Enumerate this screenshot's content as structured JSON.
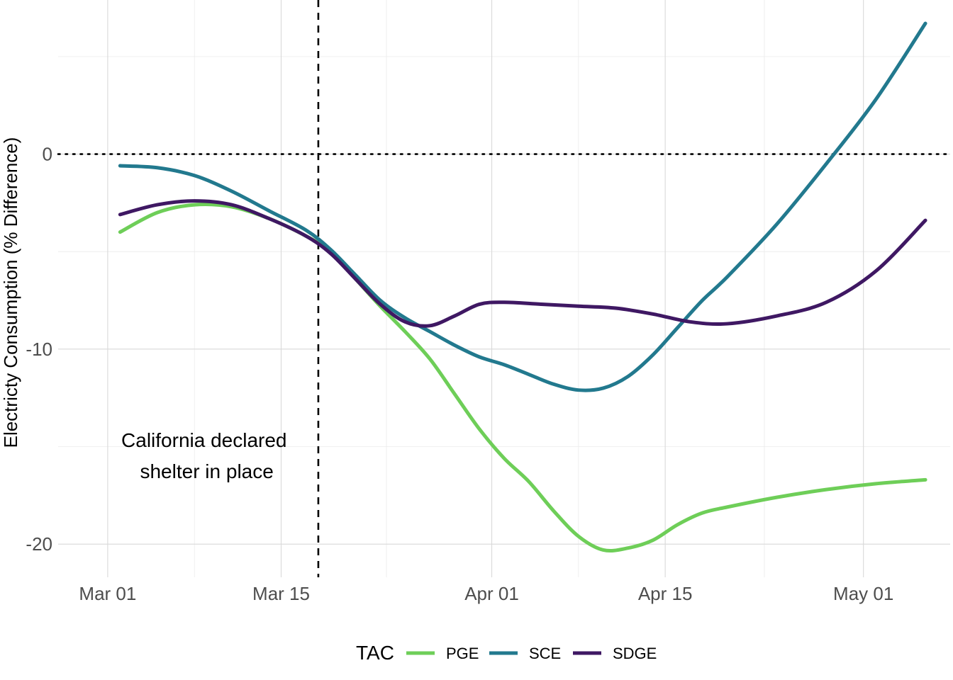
{
  "chart_data": {
    "type": "line",
    "title": "",
    "xlabel": "",
    "ylabel": "Electricty Consumption (% Difference)",
    "x_tick_labels": [
      "Mar 01",
      "Mar 15",
      "Apr 01",
      "Apr 15",
      "May 01"
    ],
    "x_tick_values": [
      "2020-03-01",
      "2020-03-15",
      "2020-04-01",
      "2020-04-15",
      "2020-05-01"
    ],
    "xlim": [
      "2020-02-26",
      "2020-05-08"
    ],
    "y_tick_labels": [
      "0",
      "-10",
      "-20"
    ],
    "y_tick_values": [
      0,
      -10,
      -20
    ],
    "ylim": [
      -21.7,
      7.9
    ],
    "grid": true,
    "legend": {
      "position": "bottom",
      "title": "TAC"
    },
    "reference_lines": [
      {
        "type": "vertical",
        "style": "dashed",
        "x": "2020-03-18"
      },
      {
        "type": "horizontal",
        "style": "dotted",
        "y": 0
      }
    ],
    "annotation": {
      "lines": [
        "California declared",
        "shelter in place"
      ],
      "x": "2020-03-09",
      "y": -15.3
    },
    "series": [
      {
        "name": "PGE",
        "color": "#6ece58",
        "points": [
          [
            "2020-03-02",
            -4.0
          ],
          [
            "2020-03-05",
            -3.0
          ],
          [
            "2020-03-08",
            -2.6
          ],
          [
            "2020-03-11",
            -2.7
          ],
          [
            "2020-03-14",
            -3.3
          ],
          [
            "2020-03-17",
            -4.2
          ],
          [
            "2020-03-19",
            -5.0
          ],
          [
            "2020-03-21",
            -6.4
          ],
          [
            "2020-03-23",
            -7.8
          ],
          [
            "2020-03-25",
            -9.1
          ],
          [
            "2020-03-27",
            -10.5
          ],
          [
            "2020-03-29",
            -12.3
          ],
          [
            "2020-03-31",
            -14.1
          ],
          [
            "2020-04-02",
            -15.6
          ],
          [
            "2020-04-04",
            -16.8
          ],
          [
            "2020-04-06",
            -18.3
          ],
          [
            "2020-04-08",
            -19.6
          ],
          [
            "2020-04-10",
            -20.3
          ],
          [
            "2020-04-12",
            -20.2
          ],
          [
            "2020-04-14",
            -19.8
          ],
          [
            "2020-04-16",
            -19.0
          ],
          [
            "2020-04-18",
            -18.4
          ],
          [
            "2020-04-20",
            -18.1
          ],
          [
            "2020-04-24",
            -17.6
          ],
          [
            "2020-04-28",
            -17.2
          ],
          [
            "2020-05-02",
            -16.9
          ],
          [
            "2020-05-06",
            -16.7
          ]
        ]
      },
      {
        "name": "SCE",
        "color": "#22798e",
        "points": [
          [
            "2020-03-02",
            -0.6
          ],
          [
            "2020-03-05",
            -0.7
          ],
          [
            "2020-03-08",
            -1.1
          ],
          [
            "2020-03-11",
            -1.9
          ],
          [
            "2020-03-14",
            -2.9
          ],
          [
            "2020-03-17",
            -3.9
          ],
          [
            "2020-03-19",
            -4.9
          ],
          [
            "2020-03-21",
            -6.2
          ],
          [
            "2020-03-23",
            -7.5
          ],
          [
            "2020-03-25",
            -8.4
          ],
          [
            "2020-03-27",
            -9.1
          ],
          [
            "2020-03-29",
            -9.8
          ],
          [
            "2020-03-31",
            -10.4
          ],
          [
            "2020-04-02",
            -10.8
          ],
          [
            "2020-04-04",
            -11.3
          ],
          [
            "2020-04-06",
            -11.8
          ],
          [
            "2020-04-08",
            -12.1
          ],
          [
            "2020-04-10",
            -12.0
          ],
          [
            "2020-04-12",
            -11.4
          ],
          [
            "2020-04-14",
            -10.3
          ],
          [
            "2020-04-16",
            -8.9
          ],
          [
            "2020-04-18",
            -7.5
          ],
          [
            "2020-04-20",
            -6.3
          ],
          [
            "2020-04-24",
            -3.6
          ],
          [
            "2020-04-28",
            -0.5
          ],
          [
            "2020-05-02",
            2.8
          ],
          [
            "2020-05-06",
            6.7
          ]
        ]
      },
      {
        "name": "SDGE",
        "color": "#3f1863",
        "points": [
          [
            "2020-03-02",
            -3.1
          ],
          [
            "2020-03-05",
            -2.6
          ],
          [
            "2020-03-08",
            -2.4
          ],
          [
            "2020-03-11",
            -2.6
          ],
          [
            "2020-03-14",
            -3.3
          ],
          [
            "2020-03-17",
            -4.2
          ],
          [
            "2020-03-19",
            -5.1
          ],
          [
            "2020-03-21",
            -6.4
          ],
          [
            "2020-03-23",
            -7.7
          ],
          [
            "2020-03-25",
            -8.6
          ],
          [
            "2020-03-27",
            -8.8
          ],
          [
            "2020-03-29",
            -8.3
          ],
          [
            "2020-03-31",
            -7.7
          ],
          [
            "2020-04-02",
            -7.6
          ],
          [
            "2020-04-05",
            -7.7
          ],
          [
            "2020-04-08",
            -7.8
          ],
          [
            "2020-04-11",
            -7.9
          ],
          [
            "2020-04-14",
            -8.2
          ],
          [
            "2020-04-17",
            -8.6
          ],
          [
            "2020-04-20",
            -8.7
          ],
          [
            "2020-04-24",
            -8.3
          ],
          [
            "2020-04-28",
            -7.6
          ],
          [
            "2020-05-02",
            -6.0
          ],
          [
            "2020-05-06",
            -3.4
          ]
        ]
      }
    ]
  }
}
